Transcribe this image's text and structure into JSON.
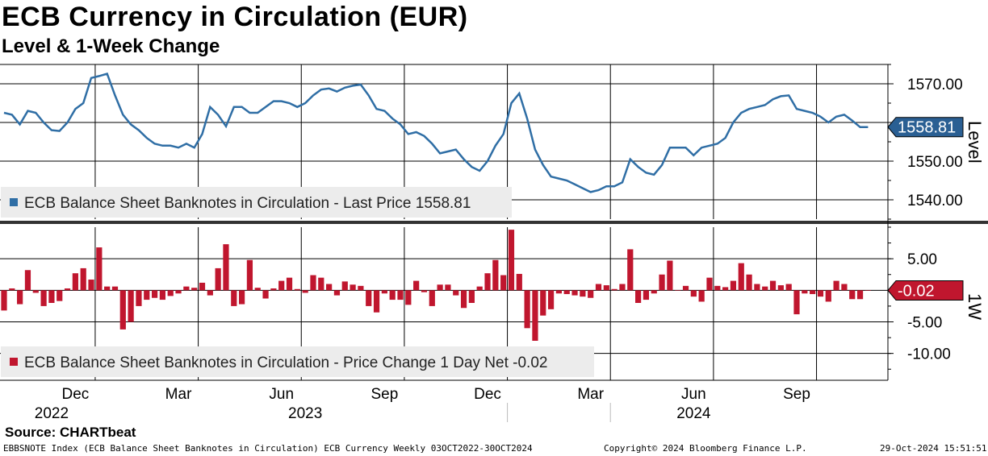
{
  "header": {
    "title": "ECB Currency in Circulation (EUR)",
    "subtitle": "Level & 1-Week Change"
  },
  "footer": {
    "source": "Source: CHARTbeat",
    "index_info": "EBBSNOTE Index (ECB Balance Sheet Banknotes in Circulation) ECB Currency  Weekly 03OCT2022-30OCT2024",
    "copyright": "Copyright© 2024 Bloomberg Finance L.P.",
    "timestamp": "29-Oct-2024 15:51:51"
  },
  "colors": {
    "line": "#2f6ea5",
    "bar": "#c0162e",
    "label_line_bg": "#2a5f93",
    "label_bar_bg": "#c0162e"
  },
  "chart_data": [
    {
      "type": "line",
      "panel": "top",
      "axis_title": "Level",
      "legend": "ECB Balance Sheet Banknotes in Circulation - Last Price 1558.81",
      "last_value_label": "1558.81",
      "ylim": [
        1535,
        1575
      ],
      "ticks": [
        1540,
        1550,
        1560,
        1570
      ],
      "tick_labels": [
        "1540.00",
        "1550.00",
        "1560.00",
        "1570.00"
      ],
      "x_start": "03OCT2022",
      "values": [
        1562.5,
        1562.0,
        1559.5,
        1563.0,
        1562.5,
        1560.0,
        1558.0,
        1557.8,
        1560.0,
        1563.5,
        1565.0,
        1571.5,
        1572.0,
        1572.6,
        1567.0,
        1562.0,
        1559.5,
        1558.0,
        1556.0,
        1554.5,
        1554.0,
        1554.0,
        1553.5,
        1554.5,
        1553.5,
        1557.0,
        1564.0,
        1562.0,
        1559.0,
        1564.0,
        1564.0,
        1562.5,
        1562.5,
        1564.0,
        1565.5,
        1565.5,
        1565.0,
        1564.0,
        1565.0,
        1567.0,
        1568.5,
        1568.8,
        1568.0,
        1569.0,
        1569.5,
        1569.8,
        1567.0,
        1563.5,
        1563.0,
        1561.0,
        1559.5,
        1557.0,
        1557.5,
        1556.5,
        1554.5,
        1552.0,
        1552.5,
        1553.0,
        1550.5,
        1548.5,
        1547.5,
        1550.0,
        1554.0,
        1557.0,
        1565.0,
        1567.5,
        1561.0,
        1553.0,
        1549.0,
        1546.0,
        1545.5,
        1545.0,
        1544.0,
        1543.0,
        1542.0,
        1542.5,
        1543.5,
        1543.5,
        1544.5,
        1550.5,
        1548.5,
        1547.0,
        1546.5,
        1549.0,
        1553.5,
        1553.5,
        1553.5,
        1551.5,
        1553.5,
        1554.0,
        1554.5,
        1556.0,
        1560.0,
        1562.5,
        1563.5,
        1564.0,
        1564.5,
        1566.0,
        1566.8,
        1567.0,
        1563.5,
        1563.0,
        1562.5,
        1561.5,
        1560.0,
        1561.5,
        1562.0,
        1560.5,
        1558.8,
        1558.81
      ]
    },
    {
      "type": "bar",
      "panel": "bottom",
      "axis_title": "1W",
      "legend": "ECB Balance Sheet Banknotes in Circulation - Price Change 1 Day Net -0.02",
      "last_value_label": "-0.02",
      "ylim": [
        -14,
        10
      ],
      "ticks": [
        -10,
        -5,
        5
      ],
      "tick_labels": [
        "-10.00",
        "-5.00",
        "5.00"
      ],
      "values": [
        -3.2,
        0.3,
        -2.2,
        3.2,
        -0.4,
        -2.5,
        -2.0,
        -1.7,
        0.3,
        2.7,
        3.5,
        1.7,
        6.8,
        0.6,
        0.6,
        -6.2,
        -5.0,
        -2.5,
        -1.5,
        -1.2,
        -1.5,
        -0.9,
        -0.5,
        0.6,
        0.4,
        1.2,
        -0.8,
        3.5,
        7.3,
        -2.5,
        -2.2,
        4.8,
        0.4,
        -1.3,
        0.3,
        1.5,
        2.0,
        0.2,
        -0.4,
        2.4,
        2.0,
        1.0,
        -0.8,
        1.4,
        0.9,
        0.7,
        -2.5,
        -3.5,
        -0.5,
        -1.5,
        -1.5,
        -2.3,
        1.5,
        -0.3,
        -2.5,
        0.9,
        0.9,
        -0.8,
        -2.8,
        -2.0,
        0.6,
        2.7,
        4.8,
        2.4,
        9.6,
        2.6,
        -6.0,
        -8.0,
        -4.0,
        -3.0,
        -0.5,
        -0.6,
        -0.8,
        -1.0,
        -1.2,
        1.0,
        0.8,
        0.2,
        1.0,
        6.5,
        -2.0,
        -1.5,
        -0.5,
        2.5,
        4.7,
        0.0,
        0.7,
        -1.0,
        -1.8,
        2.0,
        0.7,
        0.5,
        1.5,
        4.3,
        2.5,
        1.0,
        0.6,
        1.5,
        0.8,
        1.0,
        -3.8,
        -0.5,
        -0.6,
        -1.0,
        -1.8,
        1.5,
        1.0,
        -1.4,
        -1.4,
        -0.02
      ]
    }
  ],
  "x_axis": {
    "month_labels": [
      {
        "label": "Dec",
        "week": 9
      },
      {
        "label": "Mar",
        "week": 22
      },
      {
        "label": "Jun",
        "week": 35
      },
      {
        "label": "Sep",
        "week": 48
      },
      {
        "label": "Dec",
        "week": 61
      },
      {
        "label": "Mar",
        "week": 74
      },
      {
        "label": "Jun",
        "week": 87
      },
      {
        "label": "Sep",
        "week": 100
      }
    ],
    "year_labels": [
      {
        "label": "2022",
        "week": 6
      },
      {
        "label": "2023",
        "week": 38
      },
      {
        "label": "2024",
        "week": 87
      }
    ],
    "month_gridlines": [
      12,
      25,
      38,
      51,
      64,
      77,
      90,
      103
    ],
    "year_separators": [
      64,
      77
    ]
  }
}
